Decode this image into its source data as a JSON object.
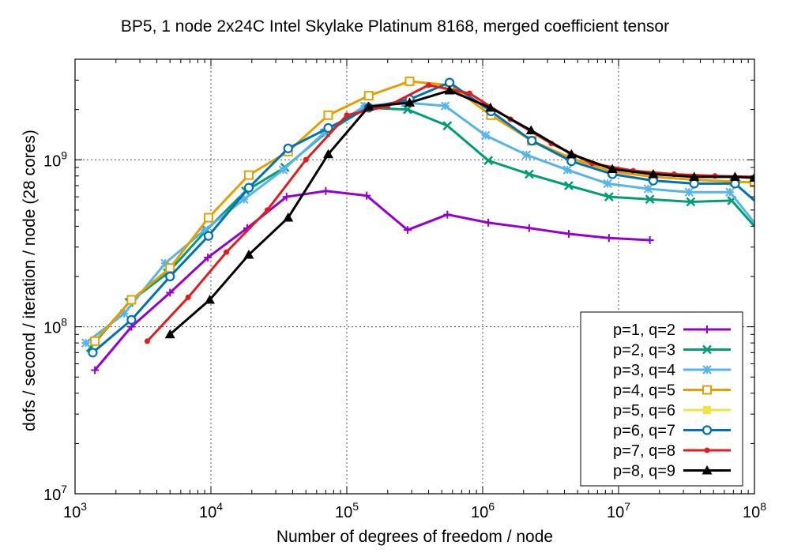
{
  "chart_data": {
    "type": "line",
    "title": "BP5, 1 node 2x24C Intel Skylake Platinum 8168, merged coefficient tensor",
    "xlabel": "Number of degrees of freedom / node",
    "ylabel": "dofs / second / iteration / node (28 cores)",
    "xscale": "log",
    "yscale": "log",
    "xlim": [
      1000,
      100000000
    ],
    "ylim": [
      10000000,
      4000000000
    ],
    "grid": true,
    "legend_position": "bottom-right",
    "x_ticks": [
      {
        "value": 1000,
        "base": "10",
        "exp": "3"
      },
      {
        "value": 10000,
        "base": "10",
        "exp": "4"
      },
      {
        "value": 100000,
        "base": "10",
        "exp": "5"
      },
      {
        "value": 1000000,
        "base": "10",
        "exp": "6"
      },
      {
        "value": 10000000,
        "base": "10",
        "exp": "7"
      },
      {
        "value": 100000000,
        "base": "10",
        "exp": "8"
      }
    ],
    "y_ticks": [
      {
        "value": 10000000,
        "base": "10",
        "exp": "7"
      },
      {
        "value": 100000000,
        "base": "10",
        "exp": "8"
      },
      {
        "value": 1000000000,
        "base": "10",
        "exp": "9"
      }
    ],
    "series": [
      {
        "name": "p=1, q=2",
        "color": "#9400d3",
        "marker": "plus",
        "x": [
          1400,
          2600,
          5000,
          9500,
          18500,
          36000,
          70000,
          140000,
          280000,
          550000,
          1100000,
          2200000,
          4300000,
          8500000,
          17000000
        ],
        "y": [
          55000000,
          100000000,
          160000000,
          260000000,
          390000000,
          600000000,
          650000000,
          610000000,
          380000000,
          470000000,
          420000000,
          390000000,
          360000000,
          340000000,
          330000000
        ]
      },
      {
        "name": "p=2, q=3",
        "color": "#009e73",
        "marker": "x",
        "x": [
          1300,
          2500,
          4800,
          9300,
          18000,
          35000,
          70000,
          140000,
          280000,
          550000,
          1100000,
          2200000,
          4300000,
          8500000,
          17000000,
          34000000,
          68000000,
          100000000
        ],
        "y": [
          75000000,
          140000000,
          210000000,
          380000000,
          650000000,
          900000000,
          1450000000,
          2050000000,
          2000000000,
          1600000000,
          990000000,
          820000000,
          700000000,
          600000000,
          580000000,
          560000000,
          570000000,
          400000000
        ],
        "clip_end": true
      },
      {
        "name": "p=3, q=4",
        "color": "#56b4e9",
        "marker": "star",
        "x": [
          1200,
          2300,
          4600,
          9000,
          17500,
          34000,
          68000,
          135000,
          270000,
          530000,
          1050000,
          2100000,
          4200000,
          8300000,
          16500000,
          33000000,
          66000000,
          100000000
        ],
        "y": [
          80000000,
          120000000,
          240000000,
          380000000,
          580000000,
          870000000,
          1450000000,
          2100000000,
          2200000000,
          2100000000,
          1400000000,
          1070000000,
          870000000,
          720000000,
          670000000,
          640000000,
          640000000,
          420000000
        ],
        "clip_end": true
      },
      {
        "name": "p=4, q=5",
        "color": "#e69f00",
        "marker": "square",
        "x": [
          1400,
          2600,
          5000,
          9600,
          19000,
          37000,
          73000,
          145000,
          290000,
          570000,
          1150000,
          2300000,
          4500000,
          9000000,
          18000000,
          36000000,
          71000000,
          100000000
        ],
        "y": [
          82000000,
          145000000,
          225000000,
          450000000,
          810000000,
          1120000000,
          1850000000,
          2420000000,
          2950000000,
          2800000000,
          1850000000,
          1300000000,
          1020000000,
          850000000,
          790000000,
          760000000,
          740000000,
          730000000
        ]
      },
      {
        "name": "p=5, q=6",
        "color": "#f0e442",
        "marker": "filled-square",
        "x": [],
        "y": []
      },
      {
        "name": "p=6, q=7",
        "color": "#0072b2",
        "marker": "circle",
        "x": [
          1350,
          2600,
          5000,
          9600,
          19000,
          37000,
          73000,
          145000,
          290000,
          570000,
          1150000,
          2300000,
          4500000,
          9000000,
          18000000,
          36000000,
          72000000,
          100000000
        ],
        "y": [
          70000000,
          110000000,
          200000000,
          350000000,
          680000000,
          1170000000,
          1550000000,
          2050000000,
          2300000000,
          2900000000,
          1950000000,
          1300000000,
          980000000,
          820000000,
          750000000,
          720000000,
          720000000,
          570000000
        ],
        "clip_end": true
      },
      {
        "name": "p=7, q=8",
        "color": "#e41a1c",
        "marker": "dot",
        "x": [
          3400,
          6800,
          13000,
          26000,
          50000,
          100000,
          200000,
          400000,
          800000,
          1600000,
          3200000,
          6400000,
          12800000,
          25600000,
          51200000,
          100000000
        ],
        "y": [
          82000000,
          150000000,
          280000000,
          500000000,
          1000000000,
          1850000000,
          2100000000,
          2800000000,
          2500000000,
          1750000000,
          1250000000,
          950000000,
          860000000,
          820000000,
          800000000,
          790000000
        ]
      },
      {
        "name": "p=8, q=9",
        "color": "#000000",
        "marker": "triangle",
        "x": [
          5000,
          9800,
          19000,
          37000,
          73000,
          145000,
          290000,
          570000,
          1140000,
          2270000,
          4500000,
          9000000,
          18000000,
          36000000,
          72000000,
          100000000
        ],
        "y": [
          90000000,
          145000000,
          270000000,
          450000000,
          1080000000,
          2080000000,
          2200000000,
          2600000000,
          2050000000,
          1500000000,
          1080000000,
          880000000,
          820000000,
          790000000,
          790000000,
          780000000
        ]
      }
    ]
  }
}
